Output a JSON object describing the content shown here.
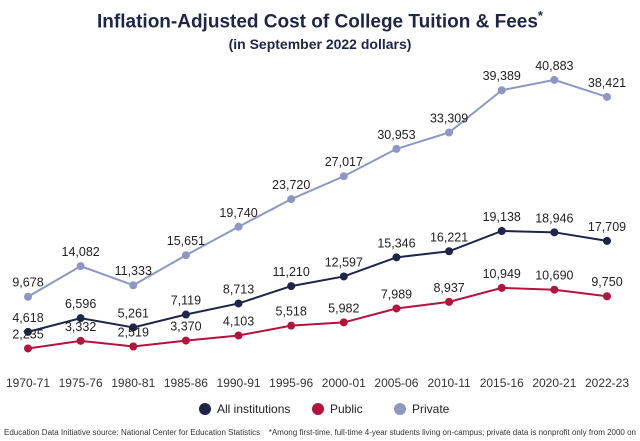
{
  "chart_data": {
    "type": "line",
    "title": "Inflation-Adjusted Cost of College Tuition & Fees",
    "title_mark": "*",
    "subtitle": "(in September 2022 dollars)",
    "categories": [
      "1970-71",
      "1975-76",
      "1980-81",
      "1985-86",
      "1990-91",
      "1995-96",
      "2000-01",
      "2005-06",
      "2010-11",
      "2015-16",
      "2020-21",
      "2022-23"
    ],
    "series": [
      {
        "name": "All institutions",
        "color": "#1e2548",
        "values": [
          4618,
          6596,
          5261,
          7119,
          8713,
          11210,
          12597,
          15346,
          16221,
          19138,
          18946,
          17709
        ]
      },
      {
        "name": "Public",
        "color": "#b5123e",
        "values": [
          2235,
          3332,
          2519,
          3370,
          4103,
          5518,
          5982,
          7989,
          8937,
          10949,
          10690,
          9750
        ]
      },
      {
        "name": "Private",
        "color": "#8e97c4",
        "values": [
          9678,
          14082,
          11333,
          15651,
          19740,
          23720,
          27017,
          30953,
          33309,
          39389,
          40883,
          38421
        ]
      }
    ],
    "ylim": [
      0,
      45000
    ],
    "grid": false,
    "y_axis_shown": false,
    "data_labels": true,
    "legend_placement": "bottom"
  },
  "footer": {
    "source": "Education Data Initiative source: National Center for Education Statistics",
    "note": "*Among first-time, full-time 4-year students living on-campus; private data is nonprofit only from 2000 on"
  }
}
